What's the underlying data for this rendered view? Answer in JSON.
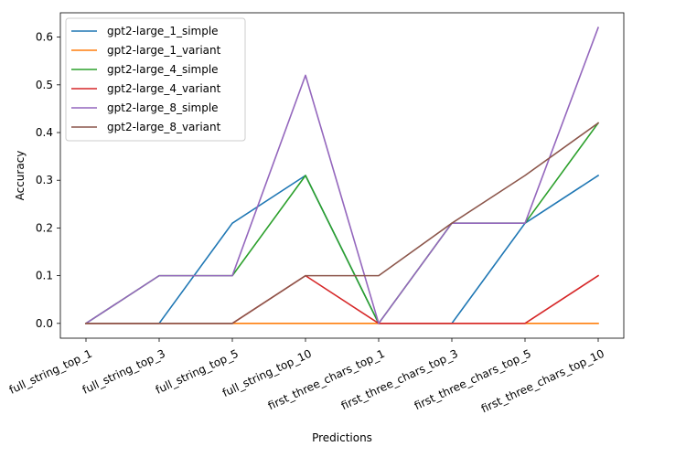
{
  "chart_data": {
    "type": "line",
    "title": "",
    "xlabel": "Predictions",
    "ylabel": "Accuracy",
    "categories": [
      "full_string_top_1",
      "full_string_top_3",
      "full_string_top_5",
      "full_string_top_10",
      "first_three_chars_top_1",
      "first_three_chars_top_3",
      "first_three_chars_top_5",
      "first_three_chars_top_10"
    ],
    "ylim": [
      -0.031,
      0.651
    ],
    "yticks": [
      0.0,
      0.1,
      0.2,
      0.3,
      0.4,
      0.5,
      0.6
    ],
    "ytick_labels": [
      "0.0",
      "0.1",
      "0.2",
      "0.3",
      "0.4",
      "0.5",
      "0.6"
    ],
    "grid": false,
    "legend_position": "upper-left",
    "series": [
      {
        "name": "gpt2-large_1_simple",
        "color": "#1f77b4",
        "values": [
          0,
          0,
          0.21,
          0.31,
          0,
          0,
          0.21,
          0.31
        ]
      },
      {
        "name": "gpt2-large_1_variant",
        "color": "#ff7f0e",
        "values": [
          0,
          0,
          0,
          0,
          0,
          0,
          0,
          0
        ]
      },
      {
        "name": "gpt2-large_4_simple",
        "color": "#2ca02c",
        "values": [
          0,
          0.1,
          0.1,
          0.31,
          0,
          0.21,
          0.21,
          0.42
        ]
      },
      {
        "name": "gpt2-large_4_variant",
        "color": "#d62728",
        "values": [
          0,
          0,
          0,
          0.1,
          0,
          0,
          0,
          0.1
        ]
      },
      {
        "name": "gpt2-large_8_simple",
        "color": "#9467bd",
        "values": [
          0,
          0.1,
          0.1,
          0.52,
          0,
          0.21,
          0.21,
          0.62
        ]
      },
      {
        "name": "gpt2-large_8_variant",
        "color": "#8c564b",
        "values": [
          0,
          0,
          0,
          0.1,
          0.1,
          0.21,
          0.31,
          0.42
        ]
      }
    ]
  }
}
